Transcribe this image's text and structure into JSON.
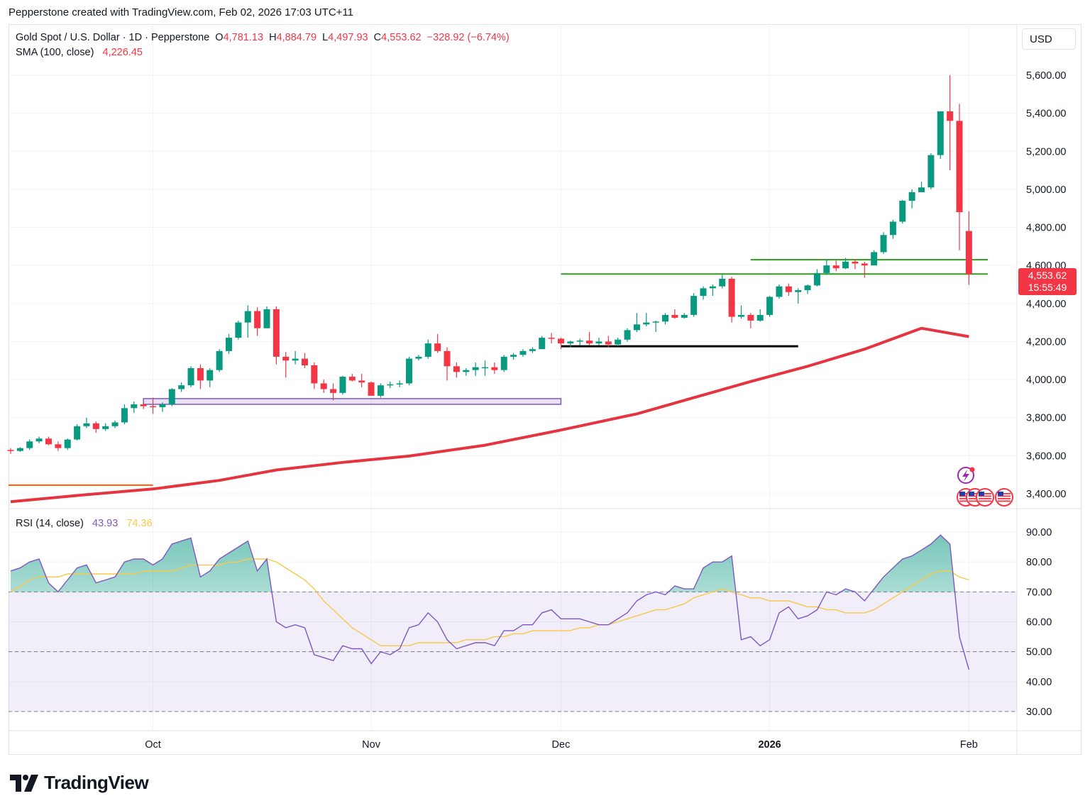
{
  "header": {
    "credit": "Pepperstone created with TradingView.com, Feb 02, 2026 17:03 UTC+11"
  },
  "legend": {
    "symbol": "Gold Spot / U.S. Dollar · 1D · Pepperstone",
    "o_label": "O",
    "o_value": "4,781.13",
    "h_label": "H",
    "h_value": "4,884.79",
    "l_label": "L",
    "l_value": "4,497.93",
    "c_label": "C",
    "c_value": "4,553.62",
    "change": "−328.92 (−6.74%)",
    "sma_label": "SMA (100, close)",
    "sma_value": "4,226.45",
    "rsi_label": "RSI (14, close)",
    "rsi_value": "43.93",
    "rsi_ma_value": "74.36"
  },
  "currency": "USD",
  "price_tag": {
    "price": "4,553.62",
    "countdown": "15:55:49"
  },
  "branding": {
    "logo_text": "TradingView"
  },
  "colors": {
    "up": "#089981",
    "down": "#f23645",
    "sma": "#e5343f",
    "rsi": "#7e57c2",
    "rsi_ma": "#f7c948",
    "band": "#7e57c2",
    "support": "#2e9d1c",
    "black_line": "#000000",
    "orange_line": "#ff5b00"
  },
  "icons": [
    "lightning-event-icon",
    "us-flag-icon"
  ],
  "chart_data": [
    {
      "type": "candlestick",
      "title": "Gold Spot / U.S. Dollar · 1D · Pepperstone",
      "ylim": [
        3350,
        5650
      ],
      "y_ticks": [
        "5,600.00",
        "5,400.00",
        "5,200.00",
        "5,000.00",
        "4,800.00",
        "4,600.00",
        "4,400.00",
        "4,200.00",
        "4,000.00",
        "3,800.00",
        "3,600.00",
        "3,400.00"
      ],
      "y_tick_values": [
        5600,
        5400,
        5200,
        5000,
        4800,
        4600,
        4400,
        4200,
        4000,
        3800,
        3600,
        3400
      ],
      "x_labels": [
        {
          "label": "Oct",
          "index": 15
        },
        {
          "label": "Nov",
          "index": 38
        },
        {
          "label": "Dec",
          "index": 58
        },
        {
          "label": "2026",
          "index": 80
        },
        {
          "label": "Feb",
          "index": 101
        }
      ],
      "candles": [
        [
          3630,
          3640,
          3610,
          3625
        ],
        [
          3625,
          3645,
          3620,
          3640
        ],
        [
          3640,
          3685,
          3630,
          3675
        ],
        [
          3675,
          3700,
          3665,
          3690
        ],
        [
          3690,
          3700,
          3655,
          3660
        ],
        [
          3660,
          3675,
          3625,
          3640
        ],
        [
          3640,
          3690,
          3630,
          3685
        ],
        [
          3685,
          3765,
          3680,
          3755
        ],
        [
          3755,
          3800,
          3745,
          3770
        ],
        [
          3770,
          3780,
          3720,
          3740
        ],
        [
          3740,
          3770,
          3730,
          3755
        ],
        [
          3755,
          3785,
          3745,
          3775
        ],
        [
          3775,
          3870,
          3765,
          3850
        ],
        [
          3850,
          3885,
          3825,
          3870
        ],
        [
          3870,
          3880,
          3845,
          3860
        ],
        [
          3860,
          3905,
          3820,
          3855
        ],
        [
          3855,
          3880,
          3830,
          3870
        ],
        [
          3870,
          3955,
          3860,
          3950
        ],
        [
          3950,
          3985,
          3935,
          3970
        ],
        [
          3970,
          4070,
          3960,
          4060
        ],
        [
          4060,
          4080,
          3950,
          3995
        ],
        [
          3995,
          4060,
          3960,
          4050
        ],
        [
          4050,
          4160,
          4040,
          4150
        ],
        [
          4150,
          4240,
          4135,
          4220
        ],
        [
          4220,
          4310,
          4210,
          4300
        ],
        [
          4300,
          4390,
          4220,
          4360
        ],
        [
          4360,
          4380,
          4230,
          4270
        ],
        [
          4270,
          4385,
          4270,
          4370
        ],
        [
          4370,
          4385,
          4080,
          4120
        ],
        [
          4120,
          4145,
          4010,
          4100
        ],
        [
          4100,
          4150,
          4080,
          4110
        ],
        [
          4110,
          4140,
          4060,
          4075
        ],
        [
          4075,
          4090,
          3950,
          3980
        ],
        [
          3980,
          4000,
          3930,
          3950
        ],
        [
          3950,
          3980,
          3890,
          3930
        ],
        [
          3930,
          4020,
          3920,
          4015
        ],
        [
          4015,
          4030,
          3990,
          3995
        ],
        [
          3995,
          4030,
          3960,
          3985
        ],
        [
          3985,
          3990,
          3920,
          3915
        ],
        [
          3915,
          3980,
          3905,
          3970
        ],
        [
          3970,
          3990,
          3955,
          3975
        ],
        [
          3975,
          3995,
          3960,
          3980
        ],
        [
          3980,
          4120,
          3970,
          4110
        ],
        [
          4110,
          4130,
          4100,
          4120
        ],
        [
          4120,
          4210,
          4110,
          4190
        ],
        [
          4190,
          4240,
          4140,
          4150
        ],
        [
          4150,
          4170,
          3995,
          4070
        ],
        [
          4070,
          4090,
          4010,
          4040
        ],
        [
          4040,
          4060,
          4020,
          4050
        ],
        [
          4050,
          4090,
          4020,
          4065
        ],
        [
          4065,
          4100,
          4020,
          4065
        ],
        [
          4065,
          4090,
          4030,
          4050
        ],
        [
          4050,
          4130,
          4040,
          4120
        ],
        [
          4120,
          4140,
          4105,
          4130
        ],
        [
          4130,
          4160,
          4120,
          4150
        ],
        [
          4150,
          4170,
          4140,
          4160
        ],
        [
          4160,
          4230,
          4160,
          4220
        ],
        [
          4220,
          4245,
          4190,
          4215
        ],
        [
          4215,
          4220,
          4160,
          4190
        ],
        [
          4190,
          4205,
          4170,
          4200
        ],
        [
          4200,
          4215,
          4180,
          4205
        ],
        [
          4205,
          4250,
          4180,
          4190
        ],
        [
          4190,
          4220,
          4180,
          4200
        ],
        [
          4200,
          4230,
          4170,
          4185
        ],
        [
          4185,
          4220,
          4175,
          4210
        ],
        [
          4210,
          4270,
          4200,
          4260
        ],
        [
          4260,
          4350,
          4250,
          4290
        ],
        [
          4290,
          4350,
          4280,
          4300
        ],
        [
          4300,
          4310,
          4250,
          4305
        ],
        [
          4305,
          4350,
          4290,
          4340
        ],
        [
          4340,
          4370,
          4320,
          4325
        ],
        [
          4325,
          4350,
          4320,
          4340
        ],
        [
          4340,
          4455,
          4330,
          4440
        ],
        [
          4440,
          4490,
          4420,
          4480
        ],
        [
          4480,
          4500,
          4440,
          4490
        ],
        [
          4490,
          4550,
          4480,
          4530
        ],
        [
          4530,
          4540,
          4300,
          4330
        ],
        [
          4330,
          4390,
          4320,
          4340
        ],
        [
          4340,
          4350,
          4270,
          4310
        ],
        [
          4310,
          4370,
          4305,
          4340
        ],
        [
          4340,
          4440,
          4330,
          4435
        ],
        [
          4435,
          4500,
          4425,
          4490
        ],
        [
          4490,
          4505,
          4440,
          4460
        ],
        [
          4460,
          4480,
          4400,
          4470
        ],
        [
          4470,
          4500,
          4450,
          4495
        ],
        [
          4495,
          4580,
          4490,
          4560
        ],
        [
          4560,
          4630,
          4550,
          4600
        ],
        [
          4600,
          4625,
          4570,
          4585
        ],
        [
          4585,
          4640,
          4580,
          4620
        ],
        [
          4620,
          4630,
          4580,
          4610
        ],
        [
          4610,
          4620,
          4535,
          4600
        ],
        [
          4600,
          4680,
          4600,
          4670
        ],
        [
          4670,
          4775,
          4660,
          4760
        ],
        [
          4760,
          4840,
          4740,
          4830
        ],
        [
          4830,
          4945,
          4820,
          4940
        ],
        [
          4940,
          5000,
          4900,
          4985
        ],
        [
          4985,
          5040,
          4985,
          5010
        ],
        [
          5010,
          5190,
          5000,
          5180
        ],
        [
          5180,
          5410,
          5160,
          5410
        ],
        [
          5410,
          5600,
          5100,
          5360
        ],
        [
          5360,
          5450,
          4680,
          4880
        ],
        [
          4781.13,
          4884.79,
          4497.93,
          4553.62
        ]
      ],
      "sma": {
        "label": "SMA (100, close)",
        "points": [
          [
            0,
            3358
          ],
          [
            8,
            3395
          ],
          [
            15,
            3425
          ],
          [
            22,
            3470
          ],
          [
            28,
            3525
          ],
          [
            35,
            3565
          ],
          [
            42,
            3598
          ],
          [
            50,
            3655
          ],
          [
            58,
            3735
          ],
          [
            66,
            3820
          ],
          [
            72,
            3905
          ],
          [
            78,
            3990
          ],
          [
            84,
            4070
          ],
          [
            90,
            4160
          ],
          [
            96,
            4270
          ],
          [
            101,
            4226
          ]
        ]
      },
      "levels": [
        {
          "name": "support-upper",
          "value": 4630,
          "from": 78,
          "to": 103
        },
        {
          "name": "support-lower",
          "value": 4555,
          "from": 58,
          "to": 103
        },
        {
          "name": "dec-base",
          "value": 4175,
          "from": 58,
          "to": 83
        },
        {
          "name": "box-top",
          "value": 3900,
          "from": 14,
          "to": 58
        },
        {
          "name": "box-bottom",
          "value": 3870,
          "from": 14,
          "to": 58
        },
        {
          "name": "orange-level",
          "value": 3445,
          "from": -1,
          "to": 15
        }
      ]
    },
    {
      "type": "line",
      "title": "RSI (14, close)",
      "ylim": [
        25,
        95
      ],
      "y_ticks": [
        "90.00",
        "80.00",
        "70.00",
        "60.00",
        "50.00",
        "40.00",
        "30.00"
      ],
      "y_tick_values": [
        90,
        80,
        70,
        60,
        50,
        40,
        30
      ],
      "bands": [
        70,
        50,
        30
      ],
      "series": [
        {
          "name": "RSI",
          "values": [
            77,
            78,
            80,
            81,
            73,
            70,
            74,
            78,
            79,
            73,
            74,
            75,
            80,
            81,
            81,
            79,
            81,
            86,
            87,
            88,
            75,
            77,
            81,
            83,
            85,
            87,
            77,
            81,
            60,
            58,
            59,
            58,
            49,
            48,
            47,
            52,
            51,
            51,
            46,
            50,
            49,
            51,
            58,
            59,
            63,
            60,
            54,
            51,
            52,
            53,
            53,
            52,
            57,
            57,
            59,
            59,
            63,
            64,
            61,
            61,
            61,
            60,
            59,
            59,
            61,
            63,
            67,
            69,
            70,
            69,
            72,
            71,
            71,
            78,
            80,
            80,
            82,
            54,
            55,
            52,
            54,
            63,
            65,
            61,
            62,
            64,
            70,
            69,
            71,
            70,
            67,
            71,
            75,
            78,
            81,
            82,
            84,
            86,
            89,
            86,
            55,
            44
          ]
        },
        {
          "name": "RSI MA",
          "values": [
            70,
            72,
            74,
            75,
            75,
            75,
            76,
            76,
            76,
            76,
            76,
            76,
            76,
            76,
            77,
            77,
            77,
            77,
            78,
            79,
            79,
            79,
            79,
            80,
            80,
            81,
            81,
            81,
            80,
            78,
            76,
            74,
            71,
            67,
            64,
            61,
            58,
            56,
            54,
            52,
            52,
            52,
            52,
            53,
            53,
            53,
            53,
            53,
            54,
            54,
            54,
            55,
            55,
            56,
            56,
            57,
            57,
            57,
            57,
            57,
            58,
            58,
            59,
            59,
            60,
            61,
            62,
            63,
            64,
            64,
            65,
            66,
            68,
            69,
            70,
            71,
            70,
            69,
            68,
            68,
            67,
            67,
            67,
            66,
            65,
            65,
            64,
            64,
            63,
            63,
            63,
            64,
            66,
            68,
            70,
            72,
            74,
            76,
            77,
            77,
            75,
            74
          ]
        }
      ]
    }
  ]
}
